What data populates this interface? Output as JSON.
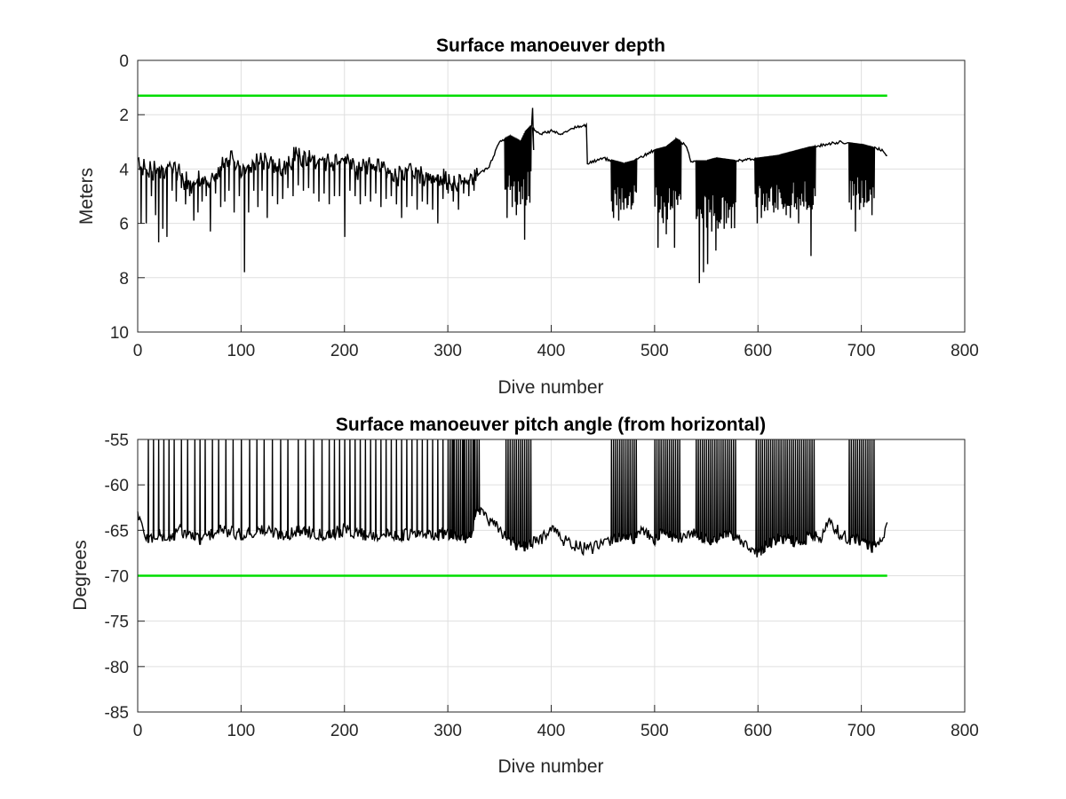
{
  "chart_data": [
    {
      "type": "line",
      "title": "Surface manoeuver depth",
      "xlabel": "Dive number",
      "ylabel": "Meters",
      "xlim": [
        0,
        800
      ],
      "ylim": [
        0,
        10
      ],
      "y_reversed": true,
      "grid": true,
      "x_ticks": [
        "0",
        "100",
        "200",
        "300",
        "400",
        "500",
        "600",
        "700",
        "800"
      ],
      "y_ticks": [
        "0",
        "2",
        "4",
        "6",
        "8",
        "10"
      ],
      "colors": {
        "data": "#000000",
        "threshold": "#00dd00"
      },
      "threshold": {
        "value": 1.3,
        "x_range": [
          0,
          725
        ]
      },
      "series": [
        {
          "baseline": [
            [
              0,
              4.0
            ],
            [
              5,
              3.9
            ],
            [
              10,
              4.1
            ],
            [
              20,
              4.0
            ],
            [
              30,
              3.9
            ],
            [
              40,
              4.2
            ],
            [
              50,
              4.6
            ],
            [
              60,
              4.3
            ],
            [
              70,
              4.5
            ],
            [
              80,
              3.9
            ],
            [
              90,
              3.6
            ],
            [
              100,
              4.0
            ],
            [
              110,
              3.8
            ],
            [
              120,
              3.7
            ],
            [
              130,
              3.8
            ],
            [
              140,
              4.0
            ],
            [
              150,
              3.6
            ],
            [
              160,
              3.5
            ],
            [
              170,
              3.6
            ],
            [
              180,
              3.7
            ],
            [
              190,
              3.8
            ],
            [
              200,
              3.6
            ],
            [
              210,
              4.1
            ],
            [
              220,
              4.0
            ],
            [
              230,
              3.9
            ],
            [
              240,
              4.1
            ],
            [
              250,
              4.3
            ],
            [
              260,
              4.0
            ],
            [
              270,
              4.1
            ],
            [
              280,
              4.3
            ],
            [
              290,
              4.2
            ],
            [
              300,
              4.5
            ],
            [
              310,
              4.5
            ],
            [
              320,
              4.4
            ],
            [
              330,
              4.2
            ],
            [
              340,
              3.9
            ],
            [
              350,
              3.0
            ],
            [
              360,
              2.8
            ],
            [
              370,
              3.0
            ],
            [
              375,
              2.6
            ],
            [
              380,
              2.4
            ],
            [
              385,
              2.6
            ],
            [
              390,
              2.7
            ],
            [
              400,
              2.6
            ],
            [
              410,
              2.7
            ],
            [
              420,
              2.5
            ],
            [
              434,
              2.4
            ],
            [
              435,
              3.8
            ],
            [
              450,
              3.6
            ],
            [
              460,
              3.7
            ],
            [
              470,
              3.8
            ],
            [
              480,
              3.7
            ],
            [
              490,
              3.5
            ],
            [
              500,
              3.3
            ],
            [
              510,
              3.2
            ],
            [
              520,
              2.9
            ],
            [
              530,
              3.1
            ],
            [
              535,
              3.7
            ],
            [
              550,
              3.7
            ],
            [
              560,
              3.6
            ],
            [
              580,
              3.7
            ],
            [
              600,
              3.6
            ],
            [
              620,
              3.5
            ],
            [
              650,
              3.2
            ],
            [
              680,
              3.0
            ],
            [
              700,
              3.1
            ],
            [
              720,
              3.3
            ],
            [
              725,
              3.5
            ]
          ],
          "excursions": [
            [
              3,
              6.0
            ],
            [
              8,
              6.0
            ],
            [
              13,
              5.0
            ],
            [
              17,
              5.7
            ],
            [
              20,
              6.7
            ],
            [
              24,
              6.2
            ],
            [
              28,
              6.5
            ],
            [
              33,
              4.8
            ],
            [
              37,
              5.2
            ],
            [
              42,
              4.7
            ],
            [
              46,
              5.3
            ],
            [
              50,
              5.0
            ],
            [
              54,
              5.9
            ],
            [
              58,
              5.6
            ],
            [
              62,
              5.2
            ],
            [
              66,
              5.0
            ],
            [
              70,
              6.3
            ],
            [
              75,
              4.9
            ],
            [
              80,
              5.4
            ],
            [
              84,
              5.2
            ],
            [
              88,
              4.8
            ],
            [
              93,
              5.6
            ],
            [
              98,
              5.0
            ],
            [
              103,
              7.8
            ],
            [
              107,
              5.6
            ],
            [
              112,
              4.8
            ],
            [
              116,
              5.4
            ],
            [
              120,
              4.8
            ],
            [
              125,
              5.8
            ],
            [
              130,
              5.0
            ],
            [
              135,
              5.3
            ],
            [
              140,
              5.1
            ],
            [
              145,
              4.7
            ],
            [
              150,
              5.0
            ],
            [
              155,
              4.6
            ],
            [
              160,
              4.8
            ],
            [
              165,
              4.7
            ],
            [
              170,
              4.9
            ],
            [
              175,
              5.2
            ],
            [
              180,
              4.9
            ],
            [
              185,
              5.3
            ],
            [
              190,
              5.0
            ],
            [
              195,
              5.0
            ],
            [
              200,
              6.5
            ],
            [
              205,
              4.8
            ],
            [
              210,
              5.0
            ],
            [
              215,
              5.3
            ],
            [
              220,
              5.0
            ],
            [
              225,
              5.2
            ],
            [
              230,
              4.9
            ],
            [
              235,
              5.4
            ],
            [
              240,
              5.1
            ],
            [
              245,
              5.0
            ],
            [
              250,
              5.3
            ],
            [
              255,
              5.8
            ],
            [
              260,
              5.4
            ],
            [
              265,
              5.0
            ],
            [
              270,
              5.5
            ],
            [
              275,
              5.2
            ],
            [
              280,
              5.3
            ],
            [
              285,
              5.5
            ],
            [
              290,
              6.0
            ],
            [
              295,
              5.1
            ],
            [
              300,
              4.9
            ],
            [
              305,
              5.2
            ],
            [
              310,
              5.5
            ],
            [
              315,
              4.9
            ],
            [
              320,
              5.0
            ],
            [
              325,
              4.8
            ],
            [
              357,
              5.8
            ],
            [
              362,
              5.4
            ],
            [
              366,
              5.7
            ],
            [
              370,
              5.3
            ],
            [
              374,
              6.6
            ],
            [
              378,
              5.0
            ],
            [
              460,
              5.8
            ],
            [
              465,
              5.9
            ],
            [
              470,
              5.5
            ],
            [
              475,
              5.0
            ],
            [
              480,
              4.6
            ],
            [
              503,
              6.9
            ],
            [
              507,
              5.8
            ],
            [
              511,
              6.4
            ],
            [
              515,
              5.5
            ],
            [
              519,
              6.9
            ],
            [
              523,
              5.0
            ],
            [
              543,
              8.2
            ],
            [
              547,
              7.8
            ],
            [
              551,
              7.5
            ],
            [
              555,
              6.3
            ],
            [
              559,
              7.0
            ],
            [
              563,
              6.0
            ],
            [
              567,
              6.2
            ],
            [
              571,
              5.8
            ],
            [
              575,
              5.4
            ],
            [
              599,
              6.0
            ],
            [
              603,
              5.8
            ],
            [
              607,
              5.4
            ],
            [
              611,
              5.2
            ],
            [
              615,
              5.6
            ],
            [
              619,
              5.5
            ],
            [
              623,
              5.3
            ],
            [
              627,
              5.7
            ],
            [
              631,
              5.8
            ],
            [
              635,
              5.4
            ],
            [
              639,
              6.0
            ],
            [
              643,
              5.2
            ],
            [
              647,
              5.5
            ],
            [
              651,
              7.2
            ],
            [
              655,
              5.0
            ],
            [
              690,
              5.5
            ],
            [
              694,
              6.3
            ],
            [
              698,
              5.5
            ],
            [
              702,
              5.4
            ],
            [
              706,
              5.2
            ],
            [
              710,
              5.7
            ]
          ],
          "dense_bands": [
            [
              355,
              380,
              5.5
            ],
            [
              458,
              482,
              5.6
            ],
            [
              500,
              525,
              6.0
            ],
            [
              540,
              578,
              6.2
            ],
            [
              597,
              655,
              5.6
            ],
            [
              688,
              712,
              5.4
            ]
          ]
        }
      ]
    },
    {
      "type": "line",
      "title": "Surface manoeuver pitch angle (from horizontal)",
      "xlabel": "Dive number",
      "ylabel": "Degrees",
      "xlim": [
        0,
        800
      ],
      "ylim": [
        -85,
        -55
      ],
      "grid": true,
      "x_ticks": [
        "0",
        "100",
        "200",
        "300",
        "400",
        "500",
        "600",
        "700",
        "800"
      ],
      "y_ticks": [
        "-55",
        "-60",
        "-65",
        "-70",
        "-75",
        "-80",
        "-85"
      ],
      "colors": {
        "data": "#000000",
        "threshold": "#00dd00"
      },
      "threshold": {
        "value": -70,
        "x_range": [
          0,
          725
        ]
      },
      "series": [
        {
          "baseline": [
            [
              0,
              -63
            ],
            [
              5,
              -65
            ],
            [
              10,
              -66
            ],
            [
              20,
              -65.5
            ],
            [
              30,
              -66
            ],
            [
              40,
              -65
            ],
            [
              50,
              -65.5
            ],
            [
              60,
              -66
            ],
            [
              80,
              -65
            ],
            [
              100,
              -65.5
            ],
            [
              120,
              -65
            ],
            [
              140,
              -65.5
            ],
            [
              160,
              -65
            ],
            [
              180,
              -65.5
            ],
            [
              200,
              -65
            ],
            [
              220,
              -65.5
            ],
            [
              240,
              -65.5
            ],
            [
              260,
              -65.5
            ],
            [
              280,
              -65.5
            ],
            [
              300,
              -65.5
            ],
            [
              320,
              -65.8
            ],
            [
              330,
              -62.5
            ],
            [
              340,
              -64
            ],
            [
              350,
              -65
            ],
            [
              360,
              -66
            ],
            [
              370,
              -67
            ],
            [
              380,
              -66.5
            ],
            [
              390,
              -66
            ],
            [
              400,
              -64.5
            ],
            [
              410,
              -66
            ],
            [
              420,
              -66.5
            ],
            [
              430,
              -67
            ],
            [
              440,
              -67
            ],
            [
              450,
              -66.5
            ],
            [
              460,
              -66
            ],
            [
              470,
              -65.5
            ],
            [
              480,
              -66
            ],
            [
              490,
              -65
            ],
            [
              500,
              -66
            ],
            [
              510,
              -65
            ],
            [
              520,
              -66
            ],
            [
              530,
              -65.5
            ],
            [
              540,
              -65.5
            ],
            [
              550,
              -66
            ],
            [
              560,
              -66
            ],
            [
              570,
              -65.5
            ],
            [
              580,
              -66
            ],
            [
              590,
              -67
            ],
            [
              600,
              -67.5
            ],
            [
              610,
              -66.5
            ],
            [
              620,
              -66
            ],
            [
              630,
              -66
            ],
            [
              640,
              -66.5
            ],
            [
              650,
              -65.5
            ],
            [
              660,
              -66
            ],
            [
              670,
              -64
            ],
            [
              680,
              -65.5
            ],
            [
              690,
              -66
            ],
            [
              700,
              -66
            ],
            [
              710,
              -67
            ],
            [
              720,
              -66
            ],
            [
              725,
              -64.5
            ]
          ],
          "spikes": [
            10,
            15,
            20,
            25,
            30,
            35,
            42,
            48,
            55,
            60,
            65,
            72,
            78,
            85,
            92,
            100,
            108,
            115,
            122,
            130,
            138,
            145,
            155,
            162,
            170,
            178,
            185,
            190,
            195,
            200,
            205,
            210,
            215,
            220,
            225,
            230,
            235,
            240,
            245,
            250,
            255,
            260,
            265,
            270,
            275,
            280,
            285,
            290,
            295,
            300,
            305,
            310,
            315,
            320,
            325
          ],
          "dense_bands": [
            [
              355,
              380
            ],
            [
              458,
              482
            ],
            [
              500,
              525
            ],
            [
              540,
              578
            ],
            [
              597,
              655
            ],
            [
              688,
              712
            ]
          ]
        }
      ]
    }
  ]
}
